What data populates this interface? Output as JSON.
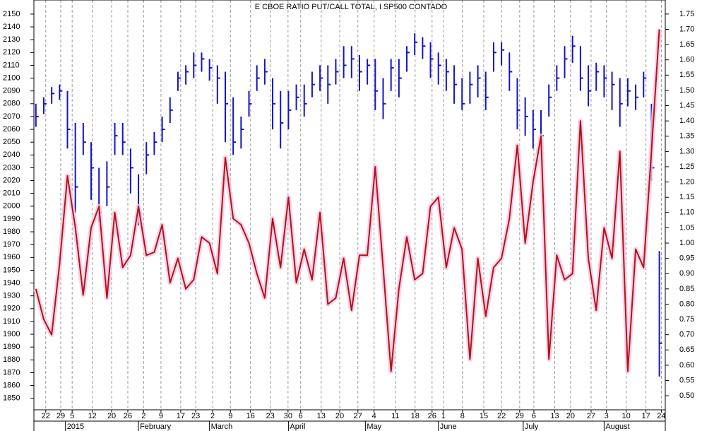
{
  "chart_data": {
    "type": "combo",
    "title": "E CBOE RATIO PUT/CALL TOTAL, I SP500 CONTADO",
    "x": [
      0,
      2,
      4,
      6,
      8,
      10,
      12,
      14,
      16,
      18,
      20,
      22,
      24,
      26,
      28,
      30,
      32,
      34,
      36,
      38,
      40,
      42,
      44,
      46,
      48,
      50,
      52,
      54,
      56,
      58,
      60,
      62,
      64,
      66,
      68,
      70,
      72,
      74,
      76,
      78,
      80,
      82,
      84,
      86,
      88,
      90,
      92,
      94,
      96,
      98,
      100,
      102,
      104,
      106,
      108,
      110,
      112,
      114,
      116,
      118,
      120,
      122,
      124,
      126,
      128,
      130,
      132,
      134,
      136,
      138,
      140,
      142,
      144,
      146,
      148,
      150,
      152,
      154,
      156,
      158
    ],
    "xlim": [
      -0.5,
      159.5
    ],
    "xticks": [
      {
        "value": 2.5,
        "label": "22"
      },
      {
        "value": 6.3,
        "label": "29"
      },
      {
        "value": 9.2,
        "label": "5"
      },
      {
        "value": 14.3,
        "label": "12"
      },
      {
        "value": 19.2,
        "label": "20"
      },
      {
        "value": 23.3,
        "label": "26"
      },
      {
        "value": 27.3,
        "label": "2"
      },
      {
        "value": 31.7,
        "label": "9"
      },
      {
        "value": 36.7,
        "label": "17"
      },
      {
        "value": 40.5,
        "label": "23"
      },
      {
        "value": 44.8,
        "label": "2"
      },
      {
        "value": 49.3,
        "label": "9"
      },
      {
        "value": 54.4,
        "label": "16"
      },
      {
        "value": 59.4,
        "label": "23"
      },
      {
        "value": 63.9,
        "label": "30"
      },
      {
        "value": 67.1,
        "label": "6"
      },
      {
        "value": 72.3,
        "label": "13"
      },
      {
        "value": 77,
        "label": "20"
      },
      {
        "value": 81.6,
        "label": "27"
      },
      {
        "value": 85.7,
        "label": "4"
      },
      {
        "value": 91.1,
        "label": "11"
      },
      {
        "value": 96.1,
        "label": "18"
      },
      {
        "value": 100.4,
        "label": "26"
      },
      {
        "value": 103.3,
        "label": "1"
      },
      {
        "value": 108.1,
        "label": "8"
      },
      {
        "value": 113.5,
        "label": "15"
      },
      {
        "value": 118,
        "label": "22"
      },
      {
        "value": 122.6,
        "label": "29"
      },
      {
        "value": 126.2,
        "label": "6"
      },
      {
        "value": 131.5,
        "label": "13"
      },
      {
        "value": 135.5,
        "label": "20"
      },
      {
        "value": 140.7,
        "label": "27"
      },
      {
        "value": 144.6,
        "label": "3"
      },
      {
        "value": 149.6,
        "label": "10"
      },
      {
        "value": 154.6,
        "label": "17"
      },
      {
        "value": 158.5,
        "label": "24"
      }
    ],
    "month_ticks": [
      {
        "value": 7.5,
        "label": "2015"
      },
      {
        "value": 26,
        "label": "February"
      },
      {
        "value": 44,
        "label": "March"
      },
      {
        "value": 64,
        "label": "April"
      },
      {
        "value": 83.5,
        "label": "May"
      },
      {
        "value": 102,
        "label": "June"
      },
      {
        "value": 123.5,
        "label": "July"
      },
      {
        "value": 144,
        "label": "August"
      }
    ],
    "ylim": [
      1841,
      2161
    ],
    "yticks": [
      2150,
      2140,
      2130,
      2120,
      2110,
      2100,
      2090,
      2080,
      2070,
      2060,
      2050,
      2040,
      2030,
      2020,
      2010,
      2000,
      1990,
      1980,
      1970,
      1960,
      1950,
      1940,
      1930,
      1920,
      1910,
      1900,
      1890,
      1880,
      1870,
      1860,
      1850
    ],
    "y2lim": [
      0.454,
      1.796
    ],
    "y2ticks": [
      1.75,
      {
        "value": 1.7,
        "label": "1.70"
      },
      1.65,
      {
        "value": 1.6,
        "label": "1.60"
      },
      1.55,
      {
        "value": 1.5,
        "label": "1.50"
      },
      1.45,
      {
        "value": 1.4,
        "label": "1.40"
      },
      1.35,
      {
        "value": 1.3,
        "label": "1.30"
      },
      1.25,
      {
        "value": 1.2,
        "label": "1.20"
      },
      1.15,
      {
        "value": 1.1,
        "label": "1.10"
      },
      1.05,
      {
        "value": 1,
        "label": "1.00"
      },
      0.95,
      {
        "value": 0.9,
        "label": "0.90"
      },
      0.85,
      {
        "value": 0.8,
        "label": "0.80"
      },
      0.75,
      {
        "value": 0.7,
        "label": "0.70"
      },
      0.65,
      {
        "value": 0.6,
        "label": "0.60"
      },
      0.55,
      {
        "value": 0.5,
        "label": "0.50"
      }
    ],
    "grid": true,
    "series": [
      {
        "type": "ohlc",
        "color": "#1414c8",
        "high": [
          2080,
          2085,
          2093,
          2095,
          2090,
          2065,
          2065,
          2050,
          2030,
          2035,
          2065,
          2065,
          2045,
          2025,
          2050,
          2058,
          2070,
          2085,
          2105,
          2110,
          2120,
          2120,
          2115,
          2110,
          2105,
          2085,
          2070,
          2090,
          2110,
          2115,
          2100,
          2090,
          2090,
          2095,
          2095,
          2105,
          2110,
          2110,
          2115,
          2125,
          2125,
          2118,
          2115,
          2115,
          2100,
          2115,
          2115,
          2125,
          2135,
          2132,
          2128,
          2120,
          2115,
          2110,
          2100,
          2105,
          2110,
          2105,
          2128,
          2128,
          2120,
          2100,
          2085,
          2075,
          2075,
          2095,
          2110,
          2125,
          2133,
          2125,
          2110,
          2112,
          2110,
          2105,
          2100,
          2100,
          2095,
          2105,
          2080,
          1965
        ],
        "low": [
          2062,
          2072,
          2080,
          2083,
          2045,
          1995,
          2040,
          2005,
          1988,
          2000,
          2040,
          2040,
          2010,
          1985,
          2025,
          2040,
          2050,
          2065,
          2090,
          2095,
          2100,
          2105,
          2098,
          2080,
          2050,
          2040,
          2045,
          2070,
          2090,
          2095,
          2060,
          2045,
          2060,
          2075,
          2070,
          2085,
          2090,
          2080,
          2095,
          2100,
          2100,
          2090,
          2095,
          2075,
          2068,
          2090,
          2085,
          2105,
          2118,
          2115,
          2100,
          2095,
          2090,
          2080,
          2075,
          2080,
          2085,
          2075,
          2105,
          2110,
          2090,
          2060,
          2055,
          2045,
          2048,
          2070,
          2090,
          2100,
          2112,
          2090,
          2078,
          2090,
          2085,
          2075,
          2062,
          2078,
          2075,
          2085,
          2020,
          1867
        ],
        "close": [
          2070,
          2080,
          2088,
          2090,
          2060,
          2015,
          2050,
          2030,
          1995,
          2015,
          2055,
          2050,
          2030,
          1995,
          2040,
          2050,
          2060,
          2075,
          2100,
          2105,
          2110,
          2115,
          2108,
          2100,
          2080,
          2050,
          2060,
          2080,
          2100,
          2105,
          2080,
          2065,
          2075,
          2085,
          2080,
          2095,
          2100,
          2095,
          2105,
          2110,
          2115,
          2105,
          2110,
          2090,
          2080,
          2108,
          2100,
          2120,
          2128,
          2125,
          2115,
          2110,
          2105,
          2095,
          2080,
          2095,
          2100,
          2085,
          2120,
          2122,
          2105,
          2075,
          2070,
          2060,
          2055,
          2085,
          2100,
          2115,
          2125,
          2100,
          2090,
          2105,
          2100,
          2095,
          2080,
          2090,
          2085,
          2100,
          2030,
          1893
        ]
      },
      {
        "type": "line",
        "axis": "y2",
        "color": "#b41414",
        "values": [
          0.85,
          0.75,
          0.7,
          0.93,
          1.22,
          1.05,
          0.83,
          1.05,
          1.12,
          0.82,
          1.1,
          0.92,
          0.96,
          1.12,
          0.96,
          0.97,
          1.06,
          0.87,
          0.95,
          0.85,
          0.88,
          1.02,
          1,
          0.9,
          1.28,
          1.08,
          1.06,
          1,
          0.9,
          0.82,
          1.08,
          0.92,
          1.15,
          0.87,
          0.98,
          0.88,
          1.1,
          0.8,
          0.82,
          0.95,
          0.78,
          0.96,
          0.96,
          1.25,
          0.92,
          0.58,
          0.85,
          1.02,
          0.88,
          0.9,
          1.12,
          1.15,
          0.92,
          1.05,
          0.98,
          0.62,
          0.95,
          0.76,
          0.92,
          0.95,
          1.08,
          1.32,
          1,
          1.2,
          1.35,
          0.62,
          0.96,
          0.88,
          0.9,
          1.4,
          0.95,
          0.78,
          1.05,
          0.95,
          1.3,
          0.58,
          0.98,
          0.92,
          1.3,
          1.7
        ]
      }
    ]
  }
}
